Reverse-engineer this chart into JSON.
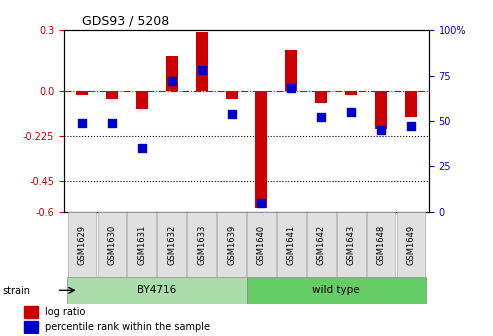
{
  "title": "GDS93 / 5208",
  "samples": [
    "GSM1629",
    "GSM1630",
    "GSM1631",
    "GSM1632",
    "GSM1633",
    "GSM1639",
    "GSM1640",
    "GSM1641",
    "GSM1642",
    "GSM1643",
    "GSM1648",
    "GSM1649"
  ],
  "log_ratio": [
    -0.02,
    -0.04,
    -0.09,
    0.17,
    0.29,
    -0.04,
    -0.58,
    0.2,
    -0.06,
    -0.02,
    -0.19,
    -0.13
  ],
  "percentile": [
    49,
    49,
    35,
    72,
    78,
    54,
    5,
    68,
    52,
    55,
    45,
    47
  ],
  "strains": [
    {
      "label": "BY4716",
      "start": 0,
      "end": 6,
      "color": "#aaddaa"
    },
    {
      "label": "wild type",
      "start": 6,
      "end": 12,
      "color": "#66cc66"
    }
  ],
  "bar_color": "#cc0000",
  "dot_color": "#0000cc",
  "ylim_left": [
    -0.6,
    0.3
  ],
  "ylim_right": [
    0,
    100
  ],
  "yticks_left": [
    -0.6,
    -0.45,
    -0.225,
    0.0,
    0.3
  ],
  "yticks_right": [
    0,
    25,
    50,
    75,
    100
  ],
  "hlines": [
    -0.225,
    -0.45
  ],
  "dashed_line": 0.0,
  "background_color": "#ffffff",
  "plot_bg_color": "#ffffff",
  "strain_label": "strain",
  "legend_log": "log ratio",
  "legend_pct": "percentile rank within the sample"
}
